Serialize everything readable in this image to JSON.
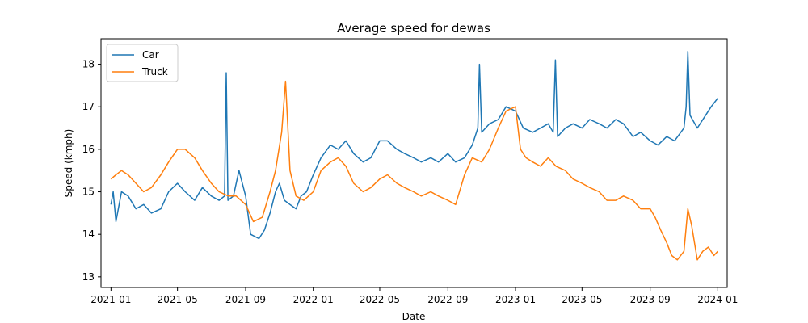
{
  "chart_data": {
    "type": "line",
    "title": "Average speed for dewas",
    "xlabel": "Date",
    "ylabel": "Speed (kmph)",
    "xlim": [
      "2020-12-14",
      "2024-01-18"
    ],
    "ylim": [
      12.75,
      18.6
    ],
    "x_ticks": [
      "2021-01",
      "2021-05",
      "2021-09",
      "2022-01",
      "2022-05",
      "2022-09",
      "2023-01",
      "2023-05",
      "2023-09",
      "2024-01"
    ],
    "y_ticks": [
      "13",
      "14",
      "15",
      "16",
      "17",
      "18"
    ],
    "grid": false,
    "legend": "upper-left",
    "series": [
      {
        "name": "Car",
        "color": "#1f77b4",
        "points": [
          [
            "2021-01-01",
            14.7
          ],
          [
            "2021-01-05",
            15.0
          ],
          [
            "2021-01-10",
            14.3
          ],
          [
            "2021-01-20",
            15.0
          ],
          [
            "2021-02-01",
            14.9
          ],
          [
            "2021-02-15",
            14.6
          ],
          [
            "2021-03-01",
            14.7
          ],
          [
            "2021-03-15",
            14.5
          ],
          [
            "2021-04-01",
            14.6
          ],
          [
            "2021-04-15",
            15.0
          ],
          [
            "2021-05-01",
            15.2
          ],
          [
            "2021-05-15",
            15.0
          ],
          [
            "2021-06-01",
            14.8
          ],
          [
            "2021-06-15",
            15.1
          ],
          [
            "2021-07-01",
            14.9
          ],
          [
            "2021-07-15",
            14.8
          ],
          [
            "2021-07-25",
            14.9
          ],
          [
            "2021-07-28",
            17.8
          ],
          [
            "2021-07-31",
            14.8
          ],
          [
            "2021-08-10",
            14.9
          ],
          [
            "2021-08-20",
            15.5
          ],
          [
            "2021-09-01",
            14.9
          ],
          [
            "2021-09-10",
            14.0
          ],
          [
            "2021-09-25",
            13.9
          ],
          [
            "2021-10-05",
            14.1
          ],
          [
            "2021-10-15",
            14.5
          ],
          [
            "2021-10-25",
            15.0
          ],
          [
            "2021-11-01",
            15.2
          ],
          [
            "2021-11-10",
            14.8
          ],
          [
            "2021-11-20",
            14.7
          ],
          [
            "2021-12-01",
            14.6
          ],
          [
            "2021-12-10",
            14.9
          ],
          [
            "2021-12-20",
            15.0
          ],
          [
            "2022-01-01",
            15.4
          ],
          [
            "2022-01-15",
            15.8
          ],
          [
            "2022-02-01",
            16.1
          ],
          [
            "2022-02-15",
            16.0
          ],
          [
            "2022-03-01",
            16.2
          ],
          [
            "2022-03-15",
            15.9
          ],
          [
            "2022-04-01",
            15.7
          ],
          [
            "2022-04-15",
            15.8
          ],
          [
            "2022-05-01",
            16.2
          ],
          [
            "2022-05-15",
            16.2
          ],
          [
            "2022-06-01",
            16.0
          ],
          [
            "2022-06-15",
            15.9
          ],
          [
            "2022-07-01",
            15.8
          ],
          [
            "2022-07-15",
            15.7
          ],
          [
            "2022-08-01",
            15.8
          ],
          [
            "2022-08-15",
            15.7
          ],
          [
            "2022-09-01",
            15.9
          ],
          [
            "2022-09-15",
            15.7
          ],
          [
            "2022-10-01",
            15.8
          ],
          [
            "2022-10-15",
            16.1
          ],
          [
            "2022-10-25",
            16.5
          ],
          [
            "2022-10-28",
            18.0
          ],
          [
            "2022-11-01",
            16.4
          ],
          [
            "2022-11-15",
            16.6
          ],
          [
            "2022-12-01",
            16.7
          ],
          [
            "2022-12-15",
            17.0
          ],
          [
            "2023-01-01",
            16.9
          ],
          [
            "2023-01-15",
            16.5
          ],
          [
            "2023-02-01",
            16.4
          ],
          [
            "2023-02-15",
            16.5
          ],
          [
            "2023-03-01",
            16.6
          ],
          [
            "2023-03-10",
            16.4
          ],
          [
            "2023-03-14",
            18.1
          ],
          [
            "2023-03-18",
            16.3
          ],
          [
            "2023-04-01",
            16.5
          ],
          [
            "2023-04-15",
            16.6
          ],
          [
            "2023-05-01",
            16.5
          ],
          [
            "2023-05-15",
            16.7
          ],
          [
            "2023-06-01",
            16.6
          ],
          [
            "2023-06-15",
            16.5
          ],
          [
            "2023-07-01",
            16.7
          ],
          [
            "2023-07-15",
            16.6
          ],
          [
            "2023-08-01",
            16.3
          ],
          [
            "2023-08-15",
            16.4
          ],
          [
            "2023-09-01",
            16.2
          ],
          [
            "2023-09-15",
            16.1
          ],
          [
            "2023-10-01",
            16.3
          ],
          [
            "2023-10-15",
            16.2
          ],
          [
            "2023-11-01",
            16.5
          ],
          [
            "2023-11-05",
            17.0
          ],
          [
            "2023-11-08",
            18.3
          ],
          [
            "2023-11-12",
            16.8
          ],
          [
            "2023-11-25",
            16.5
          ],
          [
            "2023-12-10",
            16.8
          ],
          [
            "2023-12-20",
            17.0
          ],
          [
            "2024-01-01",
            17.2
          ]
        ]
      },
      {
        "name": "Truck",
        "color": "#ff7f0e",
        "points": [
          [
            "2021-01-01",
            15.3
          ],
          [
            "2021-01-10",
            15.4
          ],
          [
            "2021-01-20",
            15.5
          ],
          [
            "2021-02-01",
            15.4
          ],
          [
            "2021-02-15",
            15.2
          ],
          [
            "2021-03-01",
            15.0
          ],
          [
            "2021-03-15",
            15.1
          ],
          [
            "2021-04-01",
            15.4
          ],
          [
            "2021-04-15",
            15.7
          ],
          [
            "2021-05-01",
            16.0
          ],
          [
            "2021-05-15",
            16.0
          ],
          [
            "2021-06-01",
            15.8
          ],
          [
            "2021-06-15",
            15.5
          ],
          [
            "2021-07-01",
            15.2
          ],
          [
            "2021-07-15",
            15.0
          ],
          [
            "2021-08-01",
            14.9
          ],
          [
            "2021-08-15",
            14.9
          ],
          [
            "2021-09-01",
            14.7
          ],
          [
            "2021-09-15",
            14.3
          ],
          [
            "2021-10-01",
            14.4
          ],
          [
            "2021-10-15",
            15.0
          ],
          [
            "2021-10-25",
            15.5
          ],
          [
            "2021-11-05",
            16.4
          ],
          [
            "2021-11-12",
            17.6
          ],
          [
            "2021-11-20",
            15.5
          ],
          [
            "2021-12-01",
            14.9
          ],
          [
            "2021-12-15",
            14.8
          ],
          [
            "2022-01-01",
            15.0
          ],
          [
            "2022-01-15",
            15.5
          ],
          [
            "2022-02-01",
            15.7
          ],
          [
            "2022-02-15",
            15.8
          ],
          [
            "2022-03-01",
            15.6
          ],
          [
            "2022-03-15",
            15.2
          ],
          [
            "2022-04-01",
            15.0
          ],
          [
            "2022-04-15",
            15.1
          ],
          [
            "2022-05-01",
            15.3
          ],
          [
            "2022-05-15",
            15.4
          ],
          [
            "2022-06-01",
            15.2
          ],
          [
            "2022-06-15",
            15.1
          ],
          [
            "2022-07-01",
            15.0
          ],
          [
            "2022-07-15",
            14.9
          ],
          [
            "2022-08-01",
            15.0
          ],
          [
            "2022-08-15",
            14.9
          ],
          [
            "2022-09-01",
            14.8
          ],
          [
            "2022-09-15",
            14.7
          ],
          [
            "2022-10-01",
            15.4
          ],
          [
            "2022-10-15",
            15.8
          ],
          [
            "2022-11-01",
            15.7
          ],
          [
            "2022-11-15",
            16.0
          ],
          [
            "2022-12-01",
            16.5
          ],
          [
            "2022-12-15",
            16.9
          ],
          [
            "2023-01-01",
            17.0
          ],
          [
            "2023-01-10",
            16.0
          ],
          [
            "2023-01-20",
            15.8
          ],
          [
            "2023-02-01",
            15.7
          ],
          [
            "2023-02-15",
            15.6
          ],
          [
            "2023-03-01",
            15.8
          ],
          [
            "2023-03-15",
            15.6
          ],
          [
            "2023-04-01",
            15.5
          ],
          [
            "2023-04-15",
            15.3
          ],
          [
            "2023-05-01",
            15.2
          ],
          [
            "2023-05-15",
            15.1
          ],
          [
            "2023-06-01",
            15.0
          ],
          [
            "2023-06-15",
            14.8
          ],
          [
            "2023-07-01",
            14.8
          ],
          [
            "2023-07-15",
            14.9
          ],
          [
            "2023-08-01",
            14.8
          ],
          [
            "2023-08-15",
            14.6
          ],
          [
            "2023-09-01",
            14.6
          ],
          [
            "2023-09-10",
            14.4
          ],
          [
            "2023-09-20",
            14.1
          ],
          [
            "2023-10-01",
            13.8
          ],
          [
            "2023-10-10",
            13.5
          ],
          [
            "2023-10-20",
            13.4
          ],
          [
            "2023-11-01",
            13.6
          ],
          [
            "2023-11-08",
            14.6
          ],
          [
            "2023-11-15",
            14.2
          ],
          [
            "2023-11-25",
            13.4
          ],
          [
            "2023-12-05",
            13.6
          ],
          [
            "2023-12-15",
            13.7
          ],
          [
            "2023-12-25",
            13.5
          ],
          [
            "2024-01-01",
            13.6
          ]
        ]
      }
    ]
  }
}
